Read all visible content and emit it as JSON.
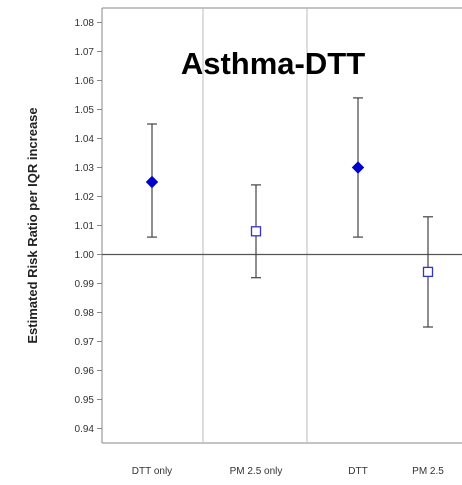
{
  "chart_data": {
    "type": "scatter",
    "title": "Asthma-DTT",
    "ylabel": "Estimated Risk Ratio per IQR increase",
    "xlabel": "",
    "categories": [
      "DTT only",
      "PM 2.5 only",
      "DTT",
      "PM 2.5"
    ],
    "ylim": [
      0.935,
      1.085
    ],
    "yticks": [
      "0.94",
      "0.95",
      "0.96",
      "0.97",
      "0.98",
      "0.99",
      "1.00",
      "1.01",
      "1.02",
      "1.03",
      "1.04",
      "1.05",
      "1.06",
      "1.07",
      "1.08"
    ],
    "reference_line": 1.0,
    "panel_dividers_after_category": [
      1,
      2
    ],
    "points": [
      {
        "category": "DTT only",
        "estimate": 1.025,
        "lower": 1.006,
        "upper": 1.045,
        "marker": "filled-diamond"
      },
      {
        "category": "PM 2.5 only",
        "estimate": 1.008,
        "lower": 0.992,
        "upper": 1.024,
        "marker": "open-square"
      },
      {
        "category": "DTT",
        "estimate": 1.03,
        "lower": 1.006,
        "upper": 1.054,
        "marker": "filled-diamond"
      },
      {
        "category": "PM 2.5",
        "estimate": 0.994,
        "lower": 0.975,
        "upper": 1.013,
        "marker": "open-square"
      }
    ],
    "colors": {
      "filled_marker": "#0000cc",
      "open_marker": "#3333cc",
      "error_bar": "#444444",
      "reference_line": "#555555",
      "axis": "#888888",
      "divider": "#bbbbbb"
    }
  }
}
